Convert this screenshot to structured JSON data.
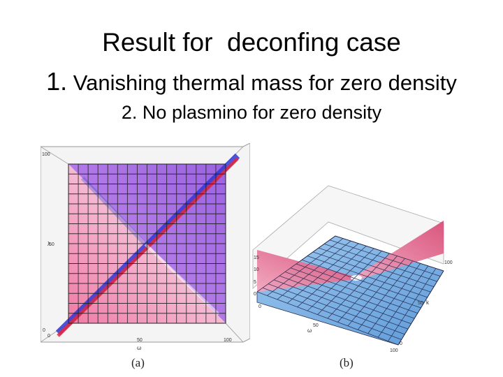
{
  "slide": {
    "title": "Result for  deconfing case",
    "line1_number": "1.",
    "line1_text": " Vanishing thermal mass for zero density",
    "line2": "2. No plasmino for zero density"
  },
  "figures": {
    "a": {
      "caption": "(a)",
      "x_axis_label": "ω",
      "y_axis_label": "λ",
      "x_ticks": [
        "0",
        "50",
        "100"
      ],
      "y_ticks": [
        "0",
        "50",
        "100"
      ],
      "colors": {
        "upper": "#b877e8",
        "lower": "#f3a7c7",
        "diagonal_blue": "#2b35d8",
        "diagonal_red": "#e3283c"
      }
    },
    "b": {
      "caption": "(b)",
      "x_axis_label": "ω",
      "y_axis_label": "k",
      "x_ticks": [
        "0",
        "50",
        "100"
      ],
      "y_ticks": [
        "0",
        "50",
        "100"
      ],
      "z_ticks": [
        "0",
        "5",
        "10",
        "15"
      ],
      "colors": {
        "surface": "#7fb6e8",
        "ridge": "#e76a84",
        "grid": "#1a1a40"
      }
    }
  }
}
